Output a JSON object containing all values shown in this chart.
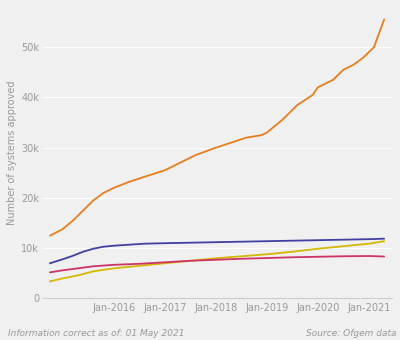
{
  "ylabel": "Number of systems approved",
  "background_color": "#f0f0f0",
  "grid_color": "#ffffff",
  "text_color": "#999999",
  "footer_left": "Information correct as of: 01 May 2021",
  "footer_right": "Source: Ofgem data",
  "yticks": [
    0,
    10000,
    20000,
    30000,
    40000,
    50000
  ],
  "ytick_labels": [
    "0",
    "10k",
    "20k",
    "30k",
    "40k",
    "50k"
  ],
  "ylim": [
    0,
    58000
  ],
  "xlim": [
    2014.62,
    2021.45
  ],
  "xtick_labels": [
    "Jan-2016",
    "Jan-2017",
    "Jan-2018",
    "Jan-2019",
    "Jan-2020",
    "Jan-2021"
  ],
  "xtick_positions": [
    2016,
    2017,
    2018,
    2019,
    2020,
    2021
  ],
  "series": {
    "orange": {
      "color": "#e87d1e",
      "points": [
        [
          2014.75,
          12500
        ],
        [
          2015.0,
          13800
        ],
        [
          2015.2,
          15500
        ],
        [
          2015.4,
          17500
        ],
        [
          2015.6,
          19500
        ],
        [
          2015.8,
          21000
        ],
        [
          2016.0,
          22000
        ],
        [
          2016.3,
          23200
        ],
        [
          2016.6,
          24200
        ],
        [
          2017.0,
          25500
        ],
        [
          2017.3,
          27000
        ],
        [
          2017.6,
          28500
        ],
        [
          2018.0,
          30000
        ],
        [
          2018.3,
          31000
        ],
        [
          2018.6,
          32000
        ],
        [
          2018.9,
          32500
        ],
        [
          2019.0,
          33000
        ],
        [
          2019.3,
          35500
        ],
        [
          2019.6,
          38500
        ],
        [
          2019.9,
          40500
        ],
        [
          2020.0,
          42000
        ],
        [
          2020.3,
          43500
        ],
        [
          2020.5,
          45500
        ],
        [
          2020.7,
          46500
        ],
        [
          2020.9,
          48000
        ],
        [
          2021.1,
          50000
        ],
        [
          2021.3,
          55500
        ]
      ]
    },
    "dark_blue": {
      "color": "#4040a0",
      "points": [
        [
          2014.75,
          7000
        ],
        [
          2015.0,
          7800
        ],
        [
          2015.2,
          8500
        ],
        [
          2015.4,
          9300
        ],
        [
          2015.6,
          9900
        ],
        [
          2015.8,
          10300
        ],
        [
          2016.0,
          10500
        ],
        [
          2016.3,
          10700
        ],
        [
          2016.6,
          10900
        ],
        [
          2017.0,
          11000
        ],
        [
          2017.5,
          11100
        ],
        [
          2018.0,
          11200
        ],
        [
          2018.5,
          11300
        ],
        [
          2019.0,
          11400
        ],
        [
          2019.5,
          11500
        ],
        [
          2020.0,
          11600
        ],
        [
          2020.5,
          11700
        ],
        [
          2021.0,
          11800
        ],
        [
          2021.3,
          11900
        ]
      ]
    },
    "pink": {
      "color": "#cc3366",
      "points": [
        [
          2014.75,
          5200
        ],
        [
          2015.0,
          5600
        ],
        [
          2015.3,
          6000
        ],
        [
          2015.6,
          6400
        ],
        [
          2016.0,
          6700
        ],
        [
          2016.5,
          6900
        ],
        [
          2017.0,
          7200
        ],
        [
          2017.5,
          7500
        ],
        [
          2018.0,
          7700
        ],
        [
          2018.5,
          7900
        ],
        [
          2019.0,
          8050
        ],
        [
          2019.5,
          8200
        ],
        [
          2020.0,
          8300
        ],
        [
          2020.5,
          8400
        ],
        [
          2021.0,
          8450
        ],
        [
          2021.3,
          8350
        ]
      ]
    },
    "yellow": {
      "color": "#d4b800",
      "points": [
        [
          2014.75,
          3400
        ],
        [
          2015.0,
          4000
        ],
        [
          2015.3,
          4600
        ],
        [
          2015.6,
          5400
        ],
        [
          2016.0,
          6000
        ],
        [
          2016.5,
          6500
        ],
        [
          2017.0,
          7000
        ],
        [
          2017.5,
          7500
        ],
        [
          2018.0,
          8000
        ],
        [
          2018.5,
          8400
        ],
        [
          2019.0,
          8800
        ],
        [
          2019.5,
          9300
        ],
        [
          2020.0,
          9900
        ],
        [
          2020.5,
          10400
        ],
        [
          2021.0,
          10900
        ],
        [
          2021.3,
          11400
        ]
      ]
    }
  },
  "linewidth": 1.3,
  "ylabel_fontsize": 7,
  "tick_fontsize": 7,
  "footer_fontsize": 6.5
}
